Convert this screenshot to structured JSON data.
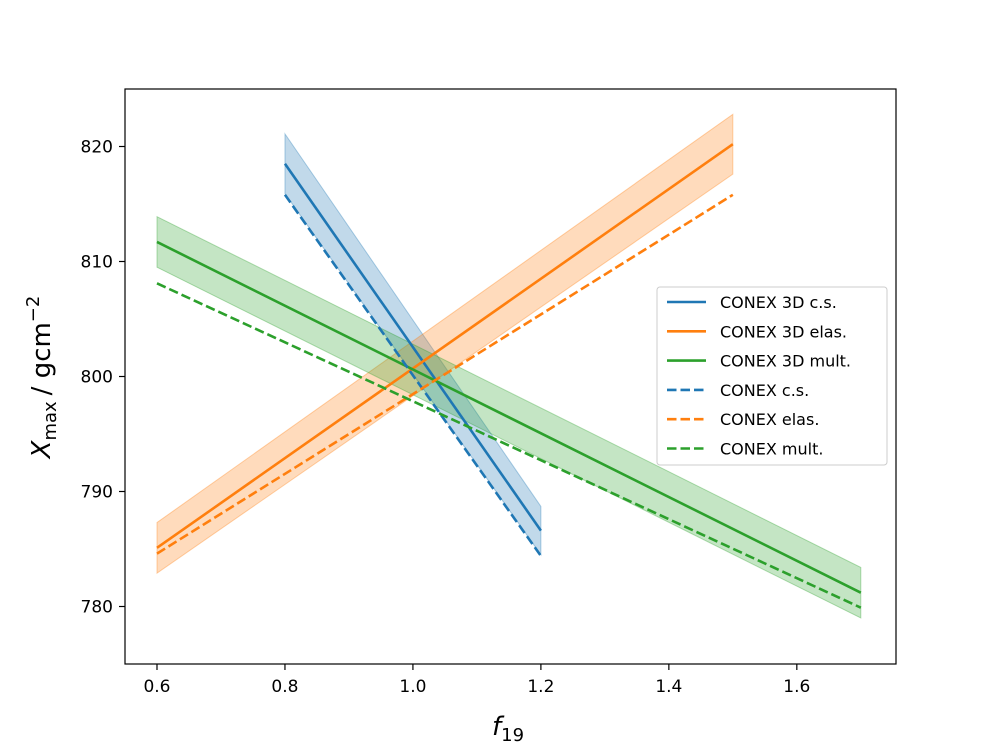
{
  "chart_data": {
    "type": "line",
    "xlabel": "f",
    "xlabel_sub": "19",
    "ylabel": "X",
    "ylabel_sub": "max",
    "ylabel_unit": "/ gcm",
    "ylabel_unit_sup": "−2",
    "xlim": [
      0.55,
      1.755
    ],
    "ylim": [
      775,
      825
    ],
    "xticks": [
      0.6,
      0.8,
      1.0,
      1.2,
      1.4,
      1.6
    ],
    "xtick_labels": [
      "0.6",
      "0.8",
      "1.0",
      "1.2",
      "1.4",
      "1.6"
    ],
    "yticks": [
      780,
      790,
      800,
      810,
      820
    ],
    "ytick_labels": [
      "780",
      "790",
      "800",
      "810",
      "820"
    ],
    "legend_position": "center-right",
    "series": [
      {
        "name": "CONEX 3D c.s.",
        "color": "#1f77b4",
        "dash": "solid",
        "x": [
          0.8,
          1.2
        ],
        "y": [
          818.5,
          786.6
        ],
        "band_upper": [
          821.1,
          788.7
        ],
        "band_lower": [
          815.9,
          784.5
        ]
      },
      {
        "name": "CONEX 3D elas.",
        "color": "#ff7f0e",
        "dash": "solid",
        "x": [
          0.6,
          1.5
        ],
        "y": [
          785.1,
          820.2
        ],
        "band_upper": [
          787.3,
          822.8
        ],
        "band_lower": [
          782.9,
          817.6
        ]
      },
      {
        "name": "CONEX 3D mult.",
        "color": "#2ca02c",
        "dash": "solid",
        "x": [
          0.6,
          1.7
        ],
        "y": [
          811.7,
          781.2
        ],
        "band_upper": [
          813.9,
          783.4
        ],
        "band_lower": [
          809.5,
          779.0
        ]
      },
      {
        "name": "CONEX c.s.",
        "color": "#1f77b4",
        "dash": "dashed",
        "x": [
          0.8,
          1.2
        ],
        "y": [
          815.8,
          784.4
        ]
      },
      {
        "name": "CONEX elas.",
        "color": "#ff7f0e",
        "dash": "dashed",
        "x": [
          0.6,
          1.5
        ],
        "y": [
          784.6,
          815.8
        ]
      },
      {
        "name": "CONEX mult.",
        "color": "#2ca02c",
        "dash": "dashed",
        "x": [
          0.6,
          1.7
        ],
        "y": [
          808.1,
          779.9
        ]
      }
    ]
  }
}
